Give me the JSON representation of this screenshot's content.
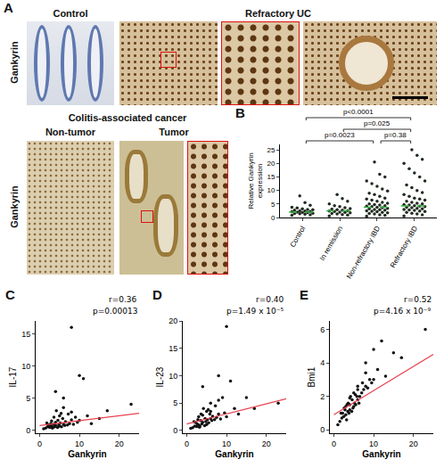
{
  "panel_A": {
    "panel_label": "A",
    "stain": "Gankyrin",
    "top": {
      "headers": [
        "Control",
        "Refractory UC"
      ]
    },
    "bottom": {
      "title": "Colitis-associated cancer",
      "headers": [
        "Non-tumor",
        "Tumor"
      ]
    }
  },
  "chart_data": [
    {
      "panel_label": "B",
      "type": "strip",
      "y_label": "Relative Gankyrin expression",
      "categories": [
        "Control",
        "In remission",
        "Non-refractory IBD",
        "Refractory IBD"
      ],
      "values": [
        [
          0.8,
          1.0,
          1.2,
          1.4,
          1.5,
          1.6,
          1.8,
          1.9,
          2.0,
          2.1,
          2.2,
          2.4,
          2.5,
          2.7,
          2.9,
          3.0,
          3.2,
          3.5,
          3.8,
          4.5,
          5.5,
          8.0
        ],
        [
          0.6,
          0.9,
          1.1,
          1.3,
          1.5,
          1.7,
          1.9,
          2.0,
          2.2,
          2.4,
          2.5,
          2.7,
          2.9,
          3.1,
          3.3,
          3.6,
          4.0,
          4.4,
          5.0,
          6.0,
          7.0,
          8.5
        ],
        [
          0.5,
          0.8,
          1.0,
          1.3,
          1.5,
          1.7,
          1.9,
          2.1,
          2.3,
          2.5,
          2.7,
          2.9,
          3.0,
          3.2,
          3.4,
          3.6,
          3.8,
          4.0,
          4.2,
          4.4,
          4.6,
          4.8,
          5.0,
          5.3,
          5.6,
          6.0,
          6.4,
          6.8,
          7.2,
          7.8,
          8.5,
          9.0,
          9.8,
          10.5,
          11.5,
          12.5,
          13.5,
          15.0,
          16.0,
          20.5
        ],
        [
          0.6,
          1.0,
          1.3,
          1.6,
          1.9,
          2.2,
          2.4,
          2.6,
          2.8,
          3.0,
          3.2,
          3.4,
          3.6,
          3.8,
          4.0,
          4.2,
          4.4,
          4.6,
          4.8,
          5.0,
          5.3,
          5.6,
          6.0,
          6.4,
          6.8,
          7.2,
          7.8,
          8.5,
          9.2,
          10.0,
          11.0,
          12.0,
          13.5,
          15.0,
          16.5,
          18.0,
          20.0,
          21.5,
          23.0,
          25.0
        ]
      ],
      "color": "#1e2a1e",
      "marker": "circle",
      "group_lines": {
        "values": [
          2.0,
          2.5,
          3.8,
          4.3
        ],
        "color": "#3cb043",
        "line_style": "dashed"
      },
      "comparisons": [
        {
          "from": "Control",
          "to": "Refractory IBD",
          "label": "p<0.0001"
        },
        {
          "from": "In remission",
          "to": "Refractory IBD",
          "label": "p=0.025"
        },
        {
          "from": "Control",
          "to": "Non-refractory IBD",
          "label": "p=0.0023"
        },
        {
          "from": "Non-refractory IBD",
          "to": "Refractory IBD",
          "label": "p=0.38"
        }
      ],
      "ylim": [
        0,
        27
      ],
      "yticks": [
        0,
        5,
        10,
        15,
        20,
        25
      ],
      "grid": false
    },
    {
      "panel_label": "C",
      "type": "scatter",
      "x_label": "Gankyrin",
      "y_label": "IL-17",
      "x": [
        1.5,
        2,
        2.2,
        2.5,
        2.8,
        3,
        3,
        3.2,
        3.5,
        3.6,
        3.8,
        4,
        4,
        4.2,
        4.5,
        4.6,
        4.8,
        5,
        5,
        5.2,
        5.5,
        5.8,
        6,
        6,
        6.3,
        6.5,
        7,
        7.2,
        7.5,
        8,
        8,
        8.5,
        9,
        9.5,
        10,
        10,
        11,
        12,
        13,
        15,
        17,
        23,
        4,
        6,
        8,
        1,
        1.8,
        2.6,
        3.3,
        5.4
      ],
      "y": [
        0.3,
        0.5,
        0.8,
        0.4,
        1.0,
        0.6,
        1.4,
        0.3,
        0.9,
        2.0,
        0.5,
        0.7,
        1.2,
        3.0,
        0.4,
        1.5,
        0.8,
        0.6,
        2.2,
        1.1,
        0.5,
        1.8,
        0.9,
        3.5,
        0.7,
        1.3,
        0.8,
        2.5,
        1.0,
        16,
        1.6,
        0.9,
        2.0,
        1.2,
        8.5,
        1.5,
        8,
        2.2,
        1.0,
        1.8,
        3,
        4,
        6,
        5,
        2.8,
        0.2,
        1.1,
        0.6,
        0.4,
        2.6
      ],
      "color": "#111111",
      "marker": "circle",
      "fit": {
        "x": [
          0,
          25
        ],
        "y": [
          0.7,
          2.6
        ],
        "color": "#e8414e"
      },
      "annotations": [
        "r=0.36",
        "p=0.00013"
      ],
      "xlim": [
        -1,
        25
      ],
      "xticks": [
        0,
        10,
        20
      ],
      "ylim": [
        -0.5,
        17
      ],
      "yticks": [
        0,
        5,
        10,
        15
      ],
      "grid": false
    },
    {
      "panel_label": "D",
      "type": "scatter",
      "x_label": "Gankyrin",
      "y_label": "IL-23",
      "x": [
        1.5,
        2,
        2.2,
        2.5,
        2.8,
        3,
        3,
        3.2,
        3.5,
        3.6,
        3.8,
        4,
        4,
        4.2,
        4.5,
        4.6,
        4.8,
        5,
        5,
        5.2,
        5.5,
        5.8,
        6,
        6,
        6.3,
        6.5,
        7,
        7.2,
        7.5,
        8,
        8,
        8.5,
        9,
        9.5,
        10,
        10,
        11,
        12,
        13,
        15,
        17,
        23,
        4,
        6,
        8,
        1,
        1.8,
        2.6,
        3.3,
        5.4
      ],
      "y": [
        0.5,
        0.8,
        1.5,
        0.7,
        2.0,
        1.0,
        2.5,
        0.6,
        1.8,
        3.0,
        1.2,
        1.5,
        2.8,
        4.0,
        0.9,
        2.2,
        1.6,
        1.1,
        3.5,
        2.0,
        1.4,
        3.0,
        2.2,
        5.0,
        1.8,
        2.6,
        2.0,
        4.5,
        2.4,
        10,
        3.0,
        2.1,
        6.0,
        3.2,
        19,
        2.5,
        9,
        4.0,
        3.0,
        6.0,
        4.0,
        5.0,
        8,
        3.5,
        5.5,
        0.4,
        1.6,
        1.2,
        0.8,
        3.8
      ],
      "color": "#111111",
      "marker": "circle",
      "fit": {
        "x": [
          0,
          25
        ],
        "y": [
          1.2,
          5.8
        ],
        "color": "#e8414e"
      },
      "annotations": [
        "r=0.40",
        "p=1.49 x 10⁻⁵"
      ],
      "xlim": [
        -1,
        25
      ],
      "xticks": [
        0,
        10,
        20
      ],
      "ylim": [
        -0.5,
        20
      ],
      "yticks": [
        0,
        5,
        10,
        15,
        20
      ],
      "grid": false
    },
    {
      "panel_label": "E",
      "type": "scatter",
      "x_label": "Gankyrin",
      "y_label": "Bmi1",
      "x": [
        1.5,
        2,
        2.2,
        2.5,
        2.8,
        3,
        3,
        3.2,
        3.5,
        3.6,
        3.8,
        4,
        4,
        4.2,
        4.5,
        4.6,
        4.8,
        5,
        5,
        5.2,
        5.5,
        5.8,
        6,
        6,
        6.3,
        6.5,
        7,
        7.2,
        7.5,
        8,
        8,
        8.5,
        9,
        9.5,
        10,
        10,
        11,
        12,
        13,
        15,
        17,
        23,
        4,
        6,
        8,
        1,
        1.8,
        2.6,
        3.3,
        5.4
      ],
      "y": [
        0.5,
        0.7,
        1.0,
        0.8,
        1.2,
        0.9,
        1.4,
        0.6,
        1.1,
        1.6,
        1.0,
        1.2,
        1.5,
        2.0,
        1.1,
        1.8,
        1.3,
        1.4,
        2.2,
        1.6,
        1.5,
        2.0,
        1.8,
        2.6,
        1.6,
        2.0,
        2.2,
        2.8,
        2.4,
        4.0,
        2.6,
        2.5,
        3.0,
        2.8,
        4.8,
        3.0,
        3.6,
        5.3,
        3.2,
        4.6,
        4.3,
        6.0,
        1.9,
        2.4,
        3.4,
        0.3,
        1.0,
        1.3,
        1.5,
        2.1
      ],
      "color": "#111111",
      "marker": "circle",
      "fit": {
        "x": [
          0,
          25
        ],
        "y": [
          0.9,
          4.5
        ],
        "color": "#e8414e"
      },
      "annotations": [
        "r=0.52",
        "p=4.16 x 10⁻⁹"
      ],
      "xlim": [
        -1,
        25
      ],
      "xticks": [
        0,
        10,
        20
      ],
      "ylim": [
        -0.2,
        6.5
      ],
      "yticks": [
        0,
        2,
        4,
        6
      ],
      "grid": false
    }
  ]
}
